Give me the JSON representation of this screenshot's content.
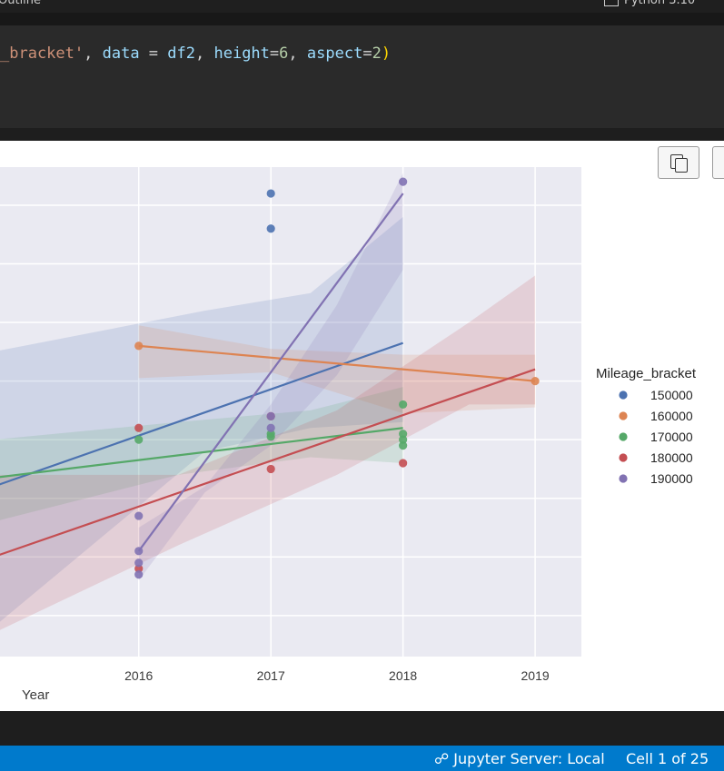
{
  "topbar": {
    "outline_label": "Outline",
    "kernel_label": "Python 3.10"
  },
  "code": {
    "str_part": "_bracket'",
    "comma1": ", ",
    "data_kw": "data",
    "eq1": " = ",
    "df_var": "df2",
    "comma2": ", ",
    "height_kw": "height",
    "eq2": "=",
    "height_val": "6",
    "comma3": ", ",
    "aspect_kw": "aspect",
    "eq3": "=",
    "aspect_val": "2",
    "close_paren": ")"
  },
  "output_toolbar": {
    "copy_icon": "copy-icon"
  },
  "statusbar": {
    "server": "Jupyter Server: Local",
    "cell_position": "Cell 1 of 25",
    "server_icon": "plug-icon"
  },
  "chart_data": {
    "type": "scatter",
    "xlabel": "Year",
    "ylabel": "",
    "x_ticks": [
      2016,
      2017,
      2018,
      2019
    ],
    "xlim": [
      2014.95,
      2019.35
    ],
    "ylim": [
      -3.7,
      4.65
    ],
    "grid": true,
    "legend_title": "Mileage_bracket",
    "legend_position": "right",
    "series": [
      {
        "name": "150000",
        "color": "#4c72b0",
        "points": [
          [
            2017,
            4.2
          ],
          [
            2017,
            3.6
          ]
        ],
        "fit": [
          [
            2014.9,
            -0.8
          ],
          [
            2018,
            1.65
          ]
        ],
        "ci": [
          [
            2014.9,
            1.5,
            -3.2
          ],
          [
            2016.5,
            2.2,
            -0.2
          ],
          [
            2017.3,
            2.5,
            0.2
          ],
          [
            2018,
            3.8,
            0.3
          ]
        ]
      },
      {
        "name": "160000",
        "color": "#dd8452",
        "points": [
          [
            2016,
            1.6
          ],
          [
            2019,
            1.0
          ]
        ],
        "fit": [
          [
            2016,
            1.6
          ],
          [
            2019,
            1.0
          ]
        ],
        "ci": [
          [
            2016,
            1.95,
            1.05
          ],
          [
            2017,
            1.55,
            1.15
          ],
          [
            2018,
            1.45,
            0.45
          ],
          [
            2019,
            1.45,
            0.55
          ]
        ]
      },
      {
        "name": "170000",
        "color": "#55a868",
        "points": [
          [
            2016,
            0.0
          ],
          [
            2017,
            0.05
          ],
          [
            2017,
            0.1
          ],
          [
            2018,
            0.6
          ],
          [
            2018,
            0.1
          ],
          [
            2018,
            0.0
          ],
          [
            2018,
            -0.1
          ]
        ],
        "fit": [
          [
            2014.9,
            -0.65
          ],
          [
            2018,
            0.2
          ]
        ],
        "ci": [
          [
            2014.9,
            0.0,
            -1.4
          ],
          [
            2016.3,
            0.3,
            -0.6
          ],
          [
            2017.3,
            0.5,
            -0.3
          ],
          [
            2018,
            0.9,
            -0.4
          ]
        ]
      },
      {
        "name": "180000",
        "color": "#c44e52",
        "points": [
          [
            2016,
            0.2
          ],
          [
            2016,
            -2.2
          ],
          [
            2017,
            0.4
          ],
          [
            2017,
            -0.5
          ],
          [
            2018,
            -0.4
          ]
        ],
        "fit": [
          [
            2014.9,
            -2.0
          ],
          [
            2019,
            1.2
          ]
        ],
        "ci": [
          [
            2014.9,
            -0.6,
            -3.3
          ],
          [
            2016.3,
            -0.6,
            -1.8
          ],
          [
            2017.5,
            0.5,
            -0.6
          ],
          [
            2018.5,
            2.0,
            0.6
          ],
          [
            2019,
            2.8,
            0.6
          ]
        ]
      },
      {
        "name": "190000",
        "color": "#8172b2",
        "points": [
          [
            2018,
            4.4
          ],
          [
            2017,
            0.4
          ],
          [
            2017,
            0.2
          ],
          [
            2016,
            -1.3
          ],
          [
            2016,
            -1.9
          ],
          [
            2016,
            -2.1
          ],
          [
            2016,
            -2.3
          ]
        ],
        "fit": [
          [
            2016,
            -1.9
          ],
          [
            2018,
            4.2
          ]
        ],
        "ci": [
          [
            2016,
            -1.5,
            -2.4
          ],
          [
            2016.5,
            -0.8,
            -0.9
          ],
          [
            2017,
            0.6,
            -0.1
          ],
          [
            2017.5,
            2.3,
            1.1
          ],
          [
            2018,
            4.55,
            2.9
          ]
        ]
      }
    ]
  }
}
